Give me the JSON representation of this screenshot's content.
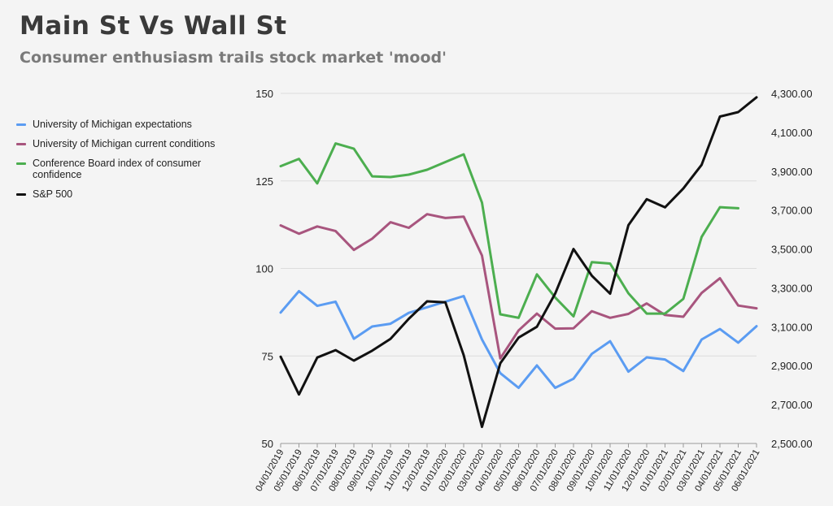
{
  "title": "Main St Vs Wall St",
  "subtitle": "Consumer enthusiasm trails stock market 'mood'",
  "chart_data": {
    "type": "line",
    "title": "Main St Vs Wall St",
    "subtitle": "Consumer enthusiasm trails stock market 'mood'",
    "legend_position": "left",
    "grid": "horizontal",
    "x": [
      "04/01/2019",
      "05/01/2019",
      "06/01/2019",
      "07/01/2019",
      "08/01/2019",
      "09/01/2019",
      "10/01/2019",
      "11/01/2019",
      "12/01/2019",
      "01/01/2020",
      "02/01/2020",
      "03/01/2020",
      "04/01/2020",
      "05/01/2020",
      "06/01/2020",
      "07/01/2020",
      "08/01/2020",
      "09/01/2020",
      "10/01/2020",
      "11/01/2020",
      "12/01/2020",
      "01/01/2021",
      "02/01/2021",
      "03/01/2021",
      "04/01/2021",
      "05/01/2021",
      "06/01/2021"
    ],
    "y_left": {
      "ylim": [
        50,
        150
      ],
      "ticks": [
        "50",
        "75",
        "100",
        "125",
        "150"
      ]
    },
    "y_right": {
      "ylim": [
        2500,
        4300
      ],
      "ticks": [
        "2,500.00",
        "2,700.00",
        "2,900.00",
        "3,100.00",
        "3,300.00",
        "3,500.00",
        "3,700.00",
        "3,900.00",
        "4,100.00",
        "4,300.00"
      ]
    },
    "series": [
      {
        "name": "University of Michigan expectations",
        "color": "#5b9cf2",
        "axis": "left",
        "values": [
          87.4,
          93.5,
          89.3,
          90.5,
          79.9,
          83.4,
          84.2,
          87.3,
          88.9,
          90.5,
          92.1,
          79.7,
          70.1,
          65.9,
          72.3,
          65.9,
          68.5,
          75.6,
          79.2,
          70.5,
          74.6,
          74.0,
          70.7,
          79.7,
          82.7,
          78.8,
          83.5
        ]
      },
      {
        "name": "University of Michigan current conditions",
        "color": "#a8557e",
        "axis": "left",
        "values": [
          112.3,
          109.9,
          112.0,
          110.7,
          105.3,
          108.5,
          113.2,
          111.6,
          115.5,
          114.4,
          114.8,
          103.7,
          74.3,
          82.3,
          87.1,
          82.8,
          82.9,
          87.8,
          85.9,
          87.0,
          90.0,
          86.7,
          86.2,
          93.0,
          97.2,
          89.4,
          88.6
        ]
      },
      {
        "name": "Conference Board index of consumer confidence",
        "color": "#4cae4f",
        "axis": "left",
        "values": [
          129.2,
          131.3,
          124.3,
          135.7,
          134.2,
          126.3,
          126.1,
          126.8,
          128.2,
          130.4,
          132.6,
          118.8,
          86.9,
          85.9,
          98.3,
          91.7,
          86.3,
          101.8,
          101.4,
          92.9,
          87.1,
          87.1,
          91.3,
          109.0,
          117.5,
          117.2,
          null
        ]
      },
      {
        "name": "S&P 500",
        "color": "#111111",
        "axis": "right",
        "values": [
          2946,
          2752,
          2942,
          2980,
          2926,
          2977,
          3038,
          3141,
          3231,
          3226,
          2954,
          2585,
          2912,
          3044,
          3100,
          3271,
          3500,
          3363,
          3270,
          3622,
          3756,
          3714,
          3811,
          3933,
          4181,
          4204,
          4280
        ]
      }
    ]
  }
}
